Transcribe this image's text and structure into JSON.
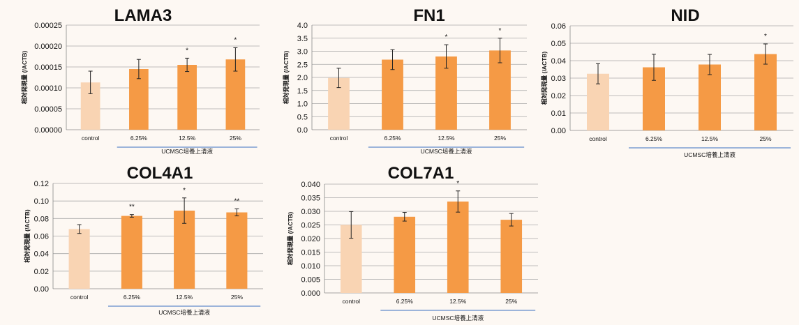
{
  "colors": {
    "control": "#f9d4b3",
    "treated": "#f59a45",
    "background": "#fdf8f3",
    "group_line": "#3a6fc0"
  },
  "ylabel": "相対発現量 (/ACTB)",
  "group_label": "UCMSC培養上清液",
  "chart_data": [
    {
      "type": "bar",
      "title": "LAMA3",
      "categories": [
        "control",
        "6.25%",
        "12.5%",
        "25%"
      ],
      "values": [
        0.000113,
        0.000145,
        0.000155,
        0.000168
      ],
      "errors": [
        2.7e-05,
        2.3e-05,
        1.6e-05,
        2.8e-05
      ],
      "significance": [
        "",
        "",
        "*",
        "*"
      ],
      "ylim": [
        0,
        0.00025
      ],
      "yticks": [
        "0.00000",
        "0.00005",
        "0.00010",
        "0.00015",
        "0.00020",
        "0.00025"
      ],
      "ylabel": "相対発現量 (/ACTB)",
      "group_label": "UCMSC培養上清液"
    },
    {
      "type": "bar",
      "title": "FN1",
      "categories": [
        "control",
        "6.25%",
        "12.5%",
        "25%"
      ],
      "values": [
        1.98,
        2.68,
        2.8,
        3.03
      ],
      "errors": [
        0.37,
        0.38,
        0.45,
        0.47
      ],
      "significance": [
        "",
        "",
        "*",
        "*"
      ],
      "ylim": [
        0,
        4
      ],
      "yticks": [
        "0.0",
        "0.5",
        "1.0",
        "1.5",
        "2.0",
        "2.5",
        "3.0",
        "3.5",
        "4.0"
      ],
      "ylabel": "相対発現量 (/ACTB)",
      "group_label": "UCMSC培養上清液"
    },
    {
      "type": "bar",
      "title": "NID",
      "categories": [
        "control",
        "6.25%",
        "12.5%",
        "25%"
      ],
      "values": [
        0.0325,
        0.0362,
        0.0378,
        0.0438
      ],
      "errors": [
        0.0058,
        0.0075,
        0.0058,
        0.0058
      ],
      "significance": [
        "",
        "",
        "",
        "*"
      ],
      "ylim": [
        0,
        0.06
      ],
      "yticks": [
        "0.00",
        "0.01",
        "0.02",
        "0.03",
        "0.04",
        "0.05",
        "0.06"
      ],
      "ylabel": "相対発現量 (/ACTB)",
      "group_label": "UCMSC培養上清液"
    },
    {
      "type": "bar",
      "title": "COL4A1",
      "categories": [
        "control",
        "6.25%",
        "12.5%",
        "25%"
      ],
      "values": [
        0.068,
        0.083,
        0.089,
        0.087
      ],
      "errors": [
        0.005,
        0.0015,
        0.0145,
        0.004
      ],
      "significance": [
        "",
        "**",
        "*",
        "**"
      ],
      "ylim": [
        0,
        0.12
      ],
      "yticks": [
        "0.00",
        "0.02",
        "0.04",
        "0.06",
        "0.08",
        "0.10",
        "0.12"
      ],
      "ylabel": "相対発現量 (/ACTB)",
      "group_label": "UCMSC培養上清液"
    },
    {
      "type": "bar",
      "title": "COL7A1",
      "categories": [
        "control",
        "6.25%",
        "12.5%",
        "25%"
      ],
      "values": [
        0.025,
        0.028,
        0.0336,
        0.0269
      ],
      "errors": [
        0.0049,
        0.0016,
        0.0039,
        0.0023
      ],
      "significance": [
        "",
        "",
        "*",
        ""
      ],
      "ylim": [
        0,
        0.04
      ],
      "yticks": [
        "0.000",
        "0.005",
        "0.010",
        "0.015",
        "0.020",
        "0.025",
        "0.030",
        "0.035",
        "0.040"
      ],
      "ylabel": "相対発現量 (/ACTB)",
      "group_label": "UCMSC培養上清液"
    }
  ]
}
